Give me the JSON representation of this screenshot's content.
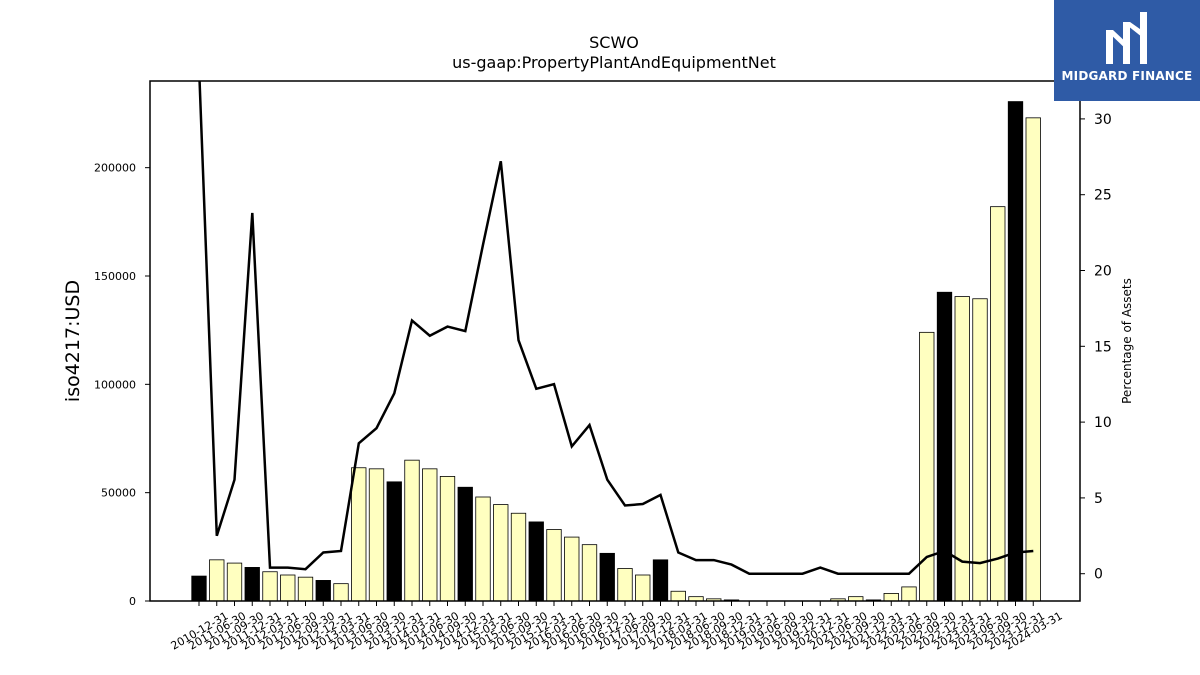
{
  "chart_data": {
    "type": "bar",
    "title": "SCWO",
    "subtitle": "us-gaap:PropertyPlantAndEquipmentNet",
    "ylabel": "iso4217:USD",
    "y2label": "Percentage of Assets",
    "ylim": [
      0,
      240000
    ],
    "y2lim": [
      -1.8,
      32.5
    ],
    "yticks": [
      0,
      50000,
      100000,
      150000,
      200000
    ],
    "y2ticks": [
      0,
      5,
      10,
      15,
      20,
      25,
      30
    ],
    "categories": [
      "2010-12-31",
      "2011-06-30",
      "2011-09-30",
      "2011-12-31",
      "2012-03-31",
      "2012-06-30",
      "2012-09-30",
      "2012-12-31",
      "2013-03-31",
      "2013-06-30",
      "2013-09-30",
      "2013-12-31",
      "2014-03-31",
      "2014-06-30",
      "2014-09-30",
      "2014-12-31",
      "2015-03-31",
      "2015-06-30",
      "2015-09-30",
      "2015-12-31",
      "2016-03-31",
      "2016-06-30",
      "2016-09-30",
      "2016-12-31",
      "2017-06-30",
      "2017-09-30",
      "2017-12-31",
      "2018-03-31",
      "2018-06-30",
      "2018-09-30",
      "2018-12-31",
      "2019-03-31",
      "2019-06-30",
      "2019-09-30",
      "2019-12-31",
      "2020-12-31",
      "2021-06-30",
      "2021-09-30",
      "2021-12-31",
      "2022-03-31",
      "2022-06-30",
      "2022-09-30",
      "2022-12-31",
      "2023-03-31",
      "2023-06-30",
      "2023-09-30",
      "2023-12-31",
      "2024-03-31"
    ],
    "series": [
      {
        "type": "bar",
        "values": [
          11500,
          19000,
          17500,
          15500,
          13500,
          12000,
          11000,
          9500,
          8000,
          61500,
          61000,
          55000,
          65000,
          61000,
          57500,
          52500,
          48000,
          44500,
          40500,
          36500,
          33000,
          29500,
          26000,
          22000,
          15000,
          12000,
          19000,
          4500,
          2000,
          1000,
          500,
          0,
          0,
          0,
          0,
          0,
          1000,
          2000,
          500,
          3500,
          6500,
          124000,
          142500,
          140500,
          139500,
          182000,
          230500,
          223000
        ],
        "year_end": [
          true,
          false,
          false,
          true,
          false,
          false,
          false,
          true,
          false,
          false,
          false,
          true,
          false,
          false,
          false,
          true,
          false,
          false,
          false,
          true,
          false,
          false,
          false,
          true,
          false,
          false,
          true,
          false,
          false,
          false,
          true,
          false,
          false,
          false,
          true,
          true,
          false,
          false,
          true,
          false,
          false,
          false,
          true,
          false,
          false,
          false,
          true,
          false
        ]
      },
      {
        "type": "line",
        "axis": "right",
        "values": [
          33.5,
          2.5,
          6.2,
          23.8,
          0.4,
          0.4,
          0.3,
          1.4,
          1.5,
          8.6,
          9.6,
          11.9,
          16.7,
          15.7,
          16.3,
          16.0,
          21.7,
          27.2,
          15.4,
          12.2,
          12.5,
          8.4,
          9.8,
          6.2,
          4.5,
          4.6,
          5.2,
          1.4,
          0.9,
          0.9,
          0.6,
          0.0,
          0.0,
          0.0,
          0.0,
          0.4,
          0.0,
          0.0,
          0.0,
          0.0,
          0.0,
          1.1,
          1.5,
          0.8,
          0.7,
          1.0,
          1.4,
          1.5
        ]
      }
    ]
  },
  "logo": {
    "text": "MIDGARD FINANCE"
  }
}
